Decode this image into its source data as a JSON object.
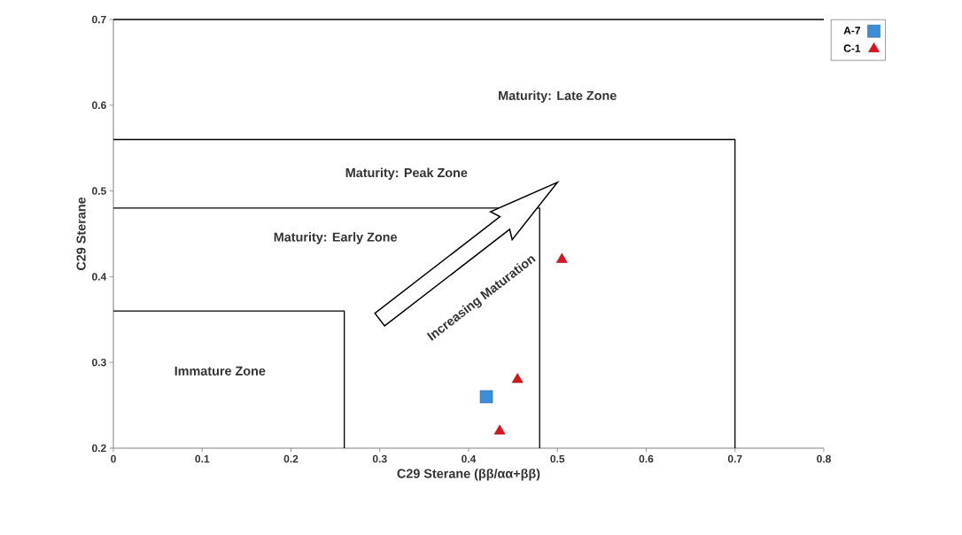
{
  "chart_data": {
    "type": "scatter",
    "xlabel": "C29 Sterane (ββ/αα+ββ)",
    "ylabel": "C29 Sterane",
    "xlim": [
      0,
      0.8
    ],
    "ylim": [
      0.2,
      0.7
    ],
    "xticks": [
      {
        "value": 0,
        "label": "0"
      },
      0.1,
      0.2,
      0.3,
      0.4,
      0.5,
      0.6,
      0.7,
      0.8
    ],
    "yticks": [
      0.2,
      0.3,
      0.4,
      0.5,
      0.6,
      0.7
    ],
    "grid": false,
    "legend": "top right",
    "series": [
      {
        "type": "line",
        "color": "#000000",
        "x": [
          0,
          0.8
        ],
        "values": [
          0.7,
          0.7
        ]
      },
      {
        "type": "line",
        "color": "#000000",
        "x": [
          0,
          0.7,
          0.7
        ],
        "values": [
          0.56,
          0.56,
          0.2
        ]
      },
      {
        "type": "line",
        "color": "#000000",
        "x": [
          0,
          0.48,
          0.48
        ],
        "values": [
          0.48,
          0.48,
          0.2
        ]
      },
      {
        "type": "line",
        "color": "#000000",
        "x": [
          0,
          0.26,
          0.26
        ],
        "values": [
          0.36,
          0.36,
          0.2
        ]
      },
      {
        "name": "A-7",
        "color": "#3b8fd9",
        "marker": "square",
        "x": [
          0.42
        ],
        "values": [
          0.26
        ]
      },
      {
        "name": "C-1",
        "color": "#e3101a",
        "marker": "triangle",
        "x": [
          0.435,
          0.455,
          0.505
        ],
        "values": [
          0.22,
          0.28,
          0.42
        ]
      }
    ],
    "annotations": [
      "Maturity: Late Zone",
      "Maturity: Peak Zone",
      "Maturity: Early Zone",
      "Immature Zone",
      "Increasing Maturation"
    ]
  }
}
